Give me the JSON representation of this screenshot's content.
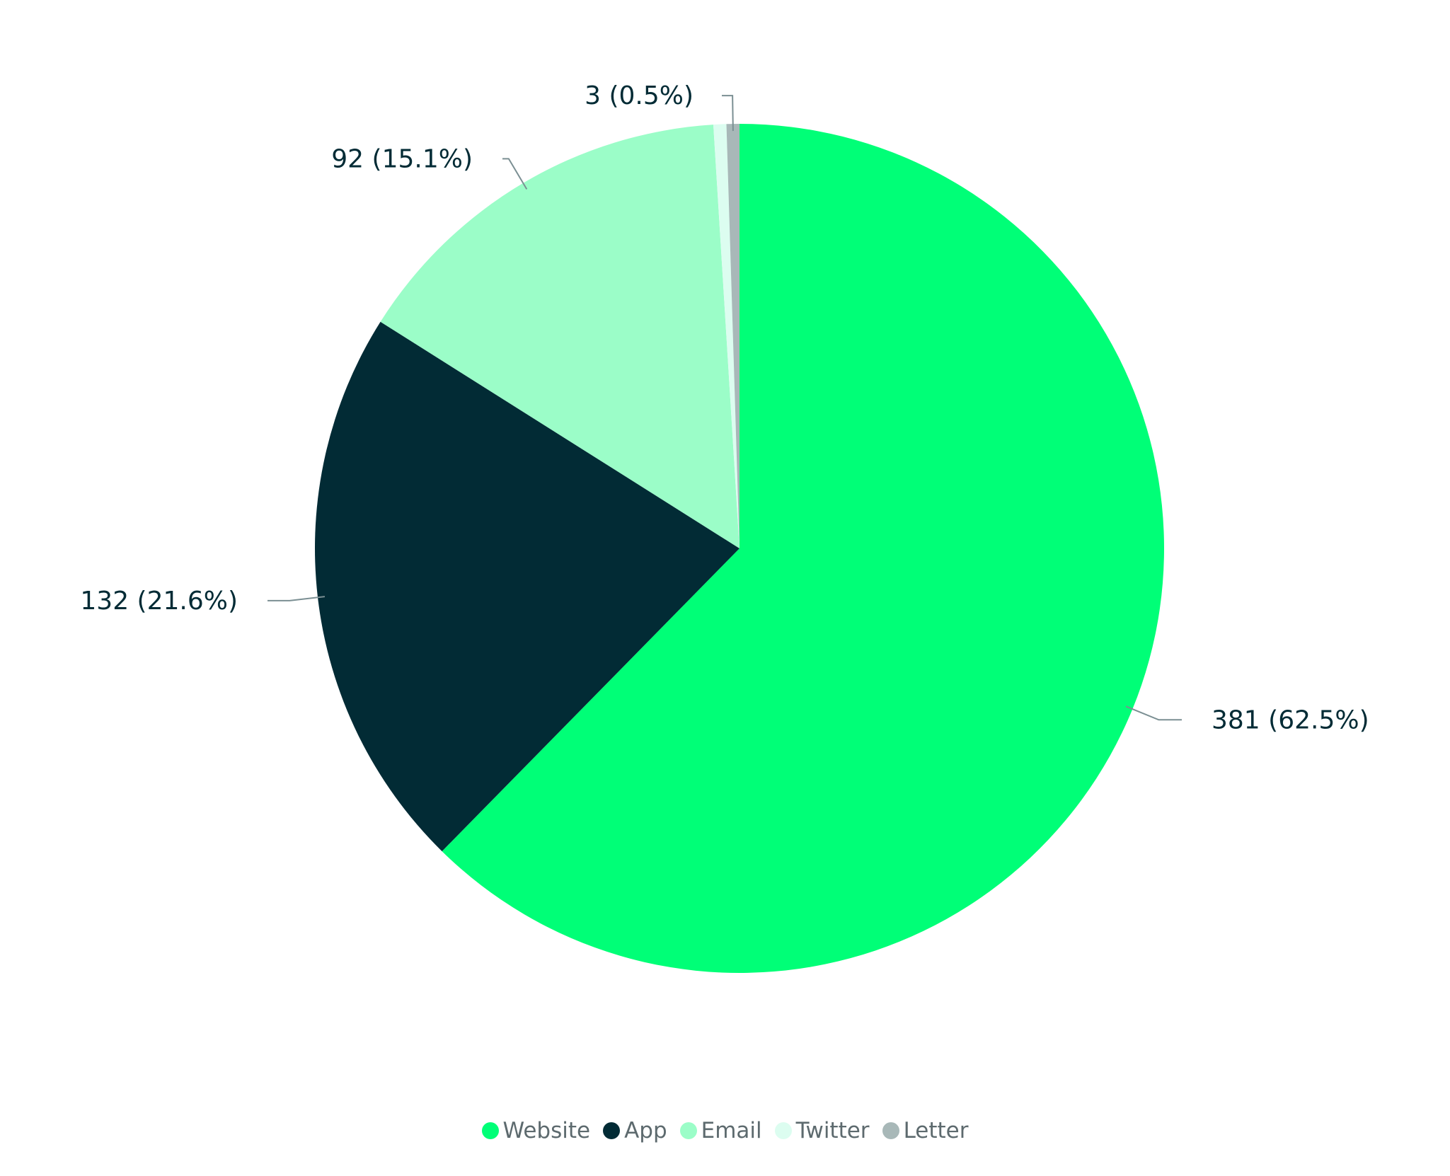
{
  "chart_data": {
    "type": "pie",
    "categories": [
      "Website",
      "App",
      "Email",
      "Twitter",
      "Letter"
    ],
    "values": [
      381,
      132,
      92,
      3,
      3
    ],
    "data_labels": [
      "381 (62.5%)",
      "132 (21.6%)",
      "92 (15.1%)",
      "",
      "3 (0.5%)"
    ],
    "colors": [
      "#00ff77",
      "#022b35",
      "#9bfdc8",
      "#dcfdf0",
      "#a8b8b8"
    ],
    "legend_position": "bottom-center",
    "start_angle": "12-o'clock, clockwise"
  }
}
